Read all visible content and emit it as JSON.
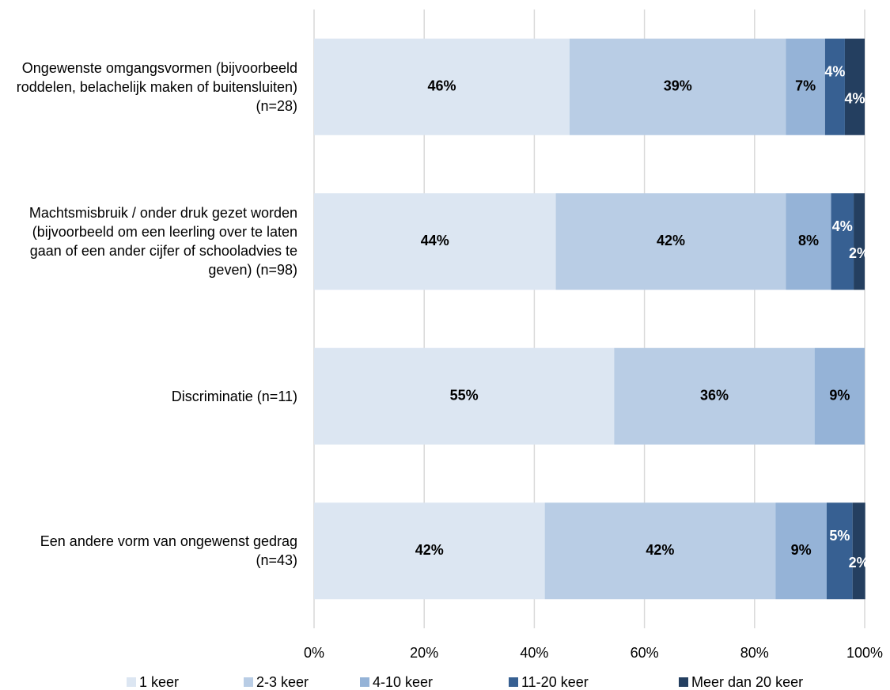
{
  "chart_data": {
    "type": "stacked_barh",
    "categories": [
      "Ongewenste omgangsvormen (bijvoorbeeld roddelen, belachelijk maken of buitensluiten) (n=28)",
      "Machtsmisbruik / onder druk gezet worden (bijvoorbeeld om een leerling over te laten gaan of een ander cijfer of schooladvies te geven) (n=98)",
      "Discriminatie (n=11)",
      "Een andere vorm van ongewenst gedrag (n=43)"
    ],
    "series": [
      {
        "name": "1 keer",
        "color": "#dce6f2",
        "label_color": "#000000",
        "values": [
          46.4,
          43.9,
          54.5,
          41.9
        ],
        "value_labels": [
          "46%",
          "44%",
          "55%",
          "42%"
        ]
      },
      {
        "name": "2-3 keer",
        "color": "#b9cde5",
        "label_color": "#000000",
        "values": [
          39.3,
          41.8,
          36.4,
          41.9
        ],
        "value_labels": [
          "39%",
          "42%",
          "36%",
          "42%"
        ]
      },
      {
        "name": "4-10 keer",
        "color": "#95b3d7",
        "label_color": "#000000",
        "values": [
          7.1,
          8.2,
          9.1,
          9.3
        ],
        "value_labels": [
          "7%",
          "8%",
          "9%",
          "9%"
        ]
      },
      {
        "name": "11-20 keer",
        "color": "#376092",
        "label_color": "#ffffff",
        "values": [
          3.6,
          4.1,
          null,
          4.7
        ],
        "value_labels": [
          "4%",
          "4%",
          null,
          "5%"
        ]
      },
      {
        "name": "Meer dan 20 keer",
        "color": "#243f60",
        "label_color": "#ffffff",
        "values": [
          3.6,
          2.0,
          null,
          2.3
        ],
        "value_labels": [
          "4%",
          "2%",
          null,
          "2%"
        ]
      }
    ],
    "xlim": [
      0,
      100
    ],
    "xticks": [
      {
        "value": 0,
        "label": "0%"
      },
      {
        "value": 20,
        "label": "20%"
      },
      {
        "value": 40,
        "label": "40%"
      },
      {
        "value": 60,
        "label": "60%"
      },
      {
        "value": 80,
        "label": "80%"
      },
      {
        "value": 100,
        "label": "100%"
      }
    ],
    "grid": true,
    "legend": "bottom"
  }
}
